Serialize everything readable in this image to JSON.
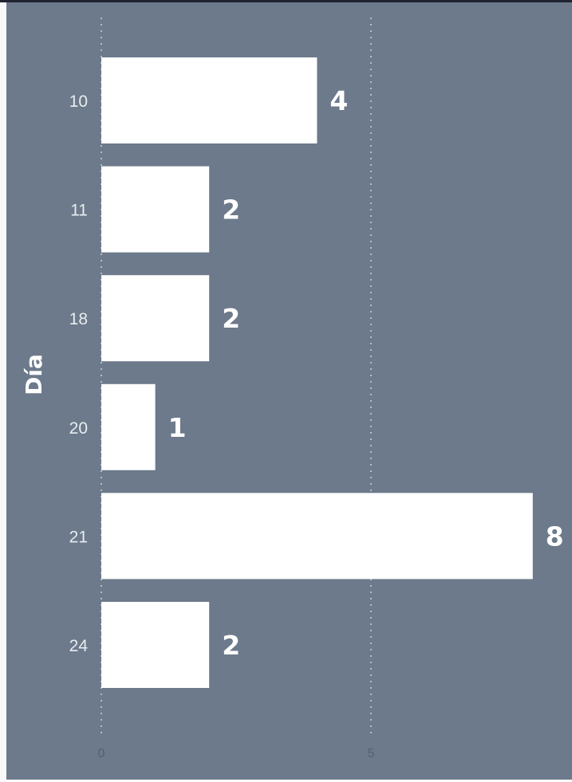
{
  "chart_data": {
    "type": "bar",
    "orientation": "horizontal",
    "title": "",
    "xlabel": "",
    "ylabel": "Día",
    "categories": [
      "10",
      "11",
      "18",
      "20",
      "21",
      "24"
    ],
    "values": [
      4,
      2,
      2,
      1,
      8,
      2
    ],
    "x_ticks": [
      "0",
      "5"
    ],
    "xlim": [
      0,
      8.5
    ],
    "grid": true,
    "legend": "none",
    "colors": {
      "background": "#6c7a8b",
      "bar": "#ffffff",
      "gridline": "#b4bcc6",
      "label": "#ffffff"
    }
  }
}
